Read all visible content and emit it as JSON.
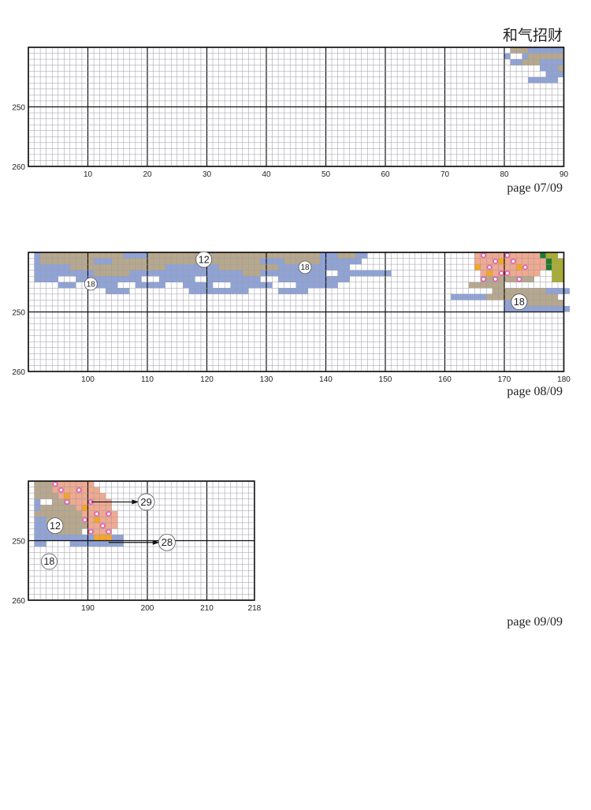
{
  "header": {
    "title": "和气招财"
  },
  "charts": [
    {
      "page_label": "page 07/09",
      "y_ticks": [
        "250",
        "260"
      ],
      "x_ticks": [
        "10",
        "20",
        "30",
        "40",
        "50",
        "60",
        "70",
        "80",
        "90"
      ],
      "symbols": []
    },
    {
      "page_label": "page 08/09",
      "y_ticks": [
        "250",
        "260"
      ],
      "x_ticks": [
        "100",
        "110",
        "120",
        "130",
        "140",
        "150",
        "160",
        "170",
        "180"
      ],
      "symbols": [
        "12",
        "18",
        "18",
        "18"
      ]
    },
    {
      "page_label": "page 09/09",
      "y_ticks": [
        "250",
        "260"
      ],
      "x_ticks": [
        "190",
        "200",
        "210",
        "218"
      ],
      "symbols": [
        "12",
        "18"
      ],
      "callouts": [
        "29",
        "28"
      ]
    }
  ],
  "colors": {
    "blue": "#8fa3d6",
    "tan": "#b7a88c",
    "salmon": "#f1a98f",
    "pink": "#e85aa8",
    "orange": "#f5a623",
    "red": "#e8352b",
    "olive": "#a9ad2c",
    "green": "#1f7a2a"
  }
}
